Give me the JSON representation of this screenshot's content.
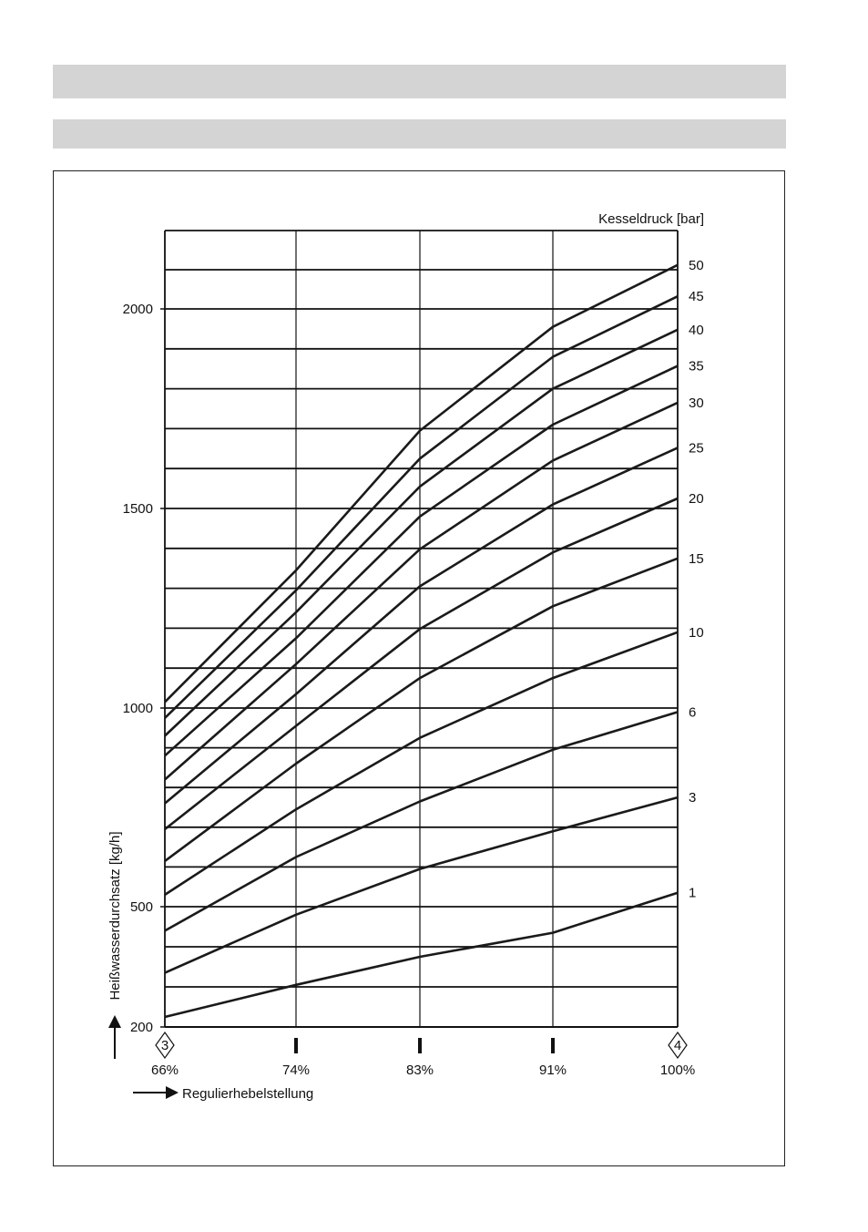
{
  "chart_data": {
    "type": "line",
    "title": "",
    "ylabel": "Heißwasserdurchsatz [kg/h]",
    "xlabel": "Regulierhebelstellung",
    "legend_title": "Kesseldruck [bar]",
    "legend_placement": "right",
    "grid": true,
    "x_positions": [
      "3",
      "",
      "",
      "",
      "4"
    ],
    "x_tick_labels": [
      "66%",
      "74%",
      "83%",
      "91%",
      "100%"
    ],
    "x_values": [
      66,
      74,
      83,
      91,
      100
    ],
    "y_tick_labels": [
      "200",
      "500",
      "1000",
      "1500",
      "2000"
    ],
    "y_tick_values": [
      200,
      500,
      1000,
      1500,
      2000
    ],
    "ylim": [
      200,
      2200
    ],
    "series": [
      {
        "name": "50",
        "values": [
          1015,
          1345,
          1695,
          1955,
          2112
        ]
      },
      {
        "name": "45",
        "values": [
          975,
          1295,
          1625,
          1880,
          2032
        ]
      },
      {
        "name": "40",
        "values": [
          930,
          1240,
          1555,
          1800,
          1948
        ]
      },
      {
        "name": "35",
        "values": [
          880,
          1175,
          1480,
          1710,
          1857
        ]
      },
      {
        "name": "30",
        "values": [
          820,
          1110,
          1398,
          1620,
          1765
        ]
      },
      {
        "name": "25",
        "values": [
          760,
          1035,
          1305,
          1510,
          1652
        ]
      },
      {
        "name": "20",
        "values": [
          695,
          955,
          1198,
          1390,
          1525
        ]
      },
      {
        "name": "15",
        "values": [
          615,
          860,
          1075,
          1255,
          1375
        ]
      },
      {
        "name": "10",
        "values": [
          530,
          745,
          925,
          1075,
          1190
        ]
      },
      {
        "name": "6",
        "values": [
          440,
          625,
          765,
          895,
          990
        ]
      },
      {
        "name": "3",
        "values": [
          335,
          480,
          595,
          690,
          775
        ]
      },
      {
        "name": "1",
        "values": [
          225,
          305,
          375,
          435,
          535
        ]
      }
    ]
  }
}
